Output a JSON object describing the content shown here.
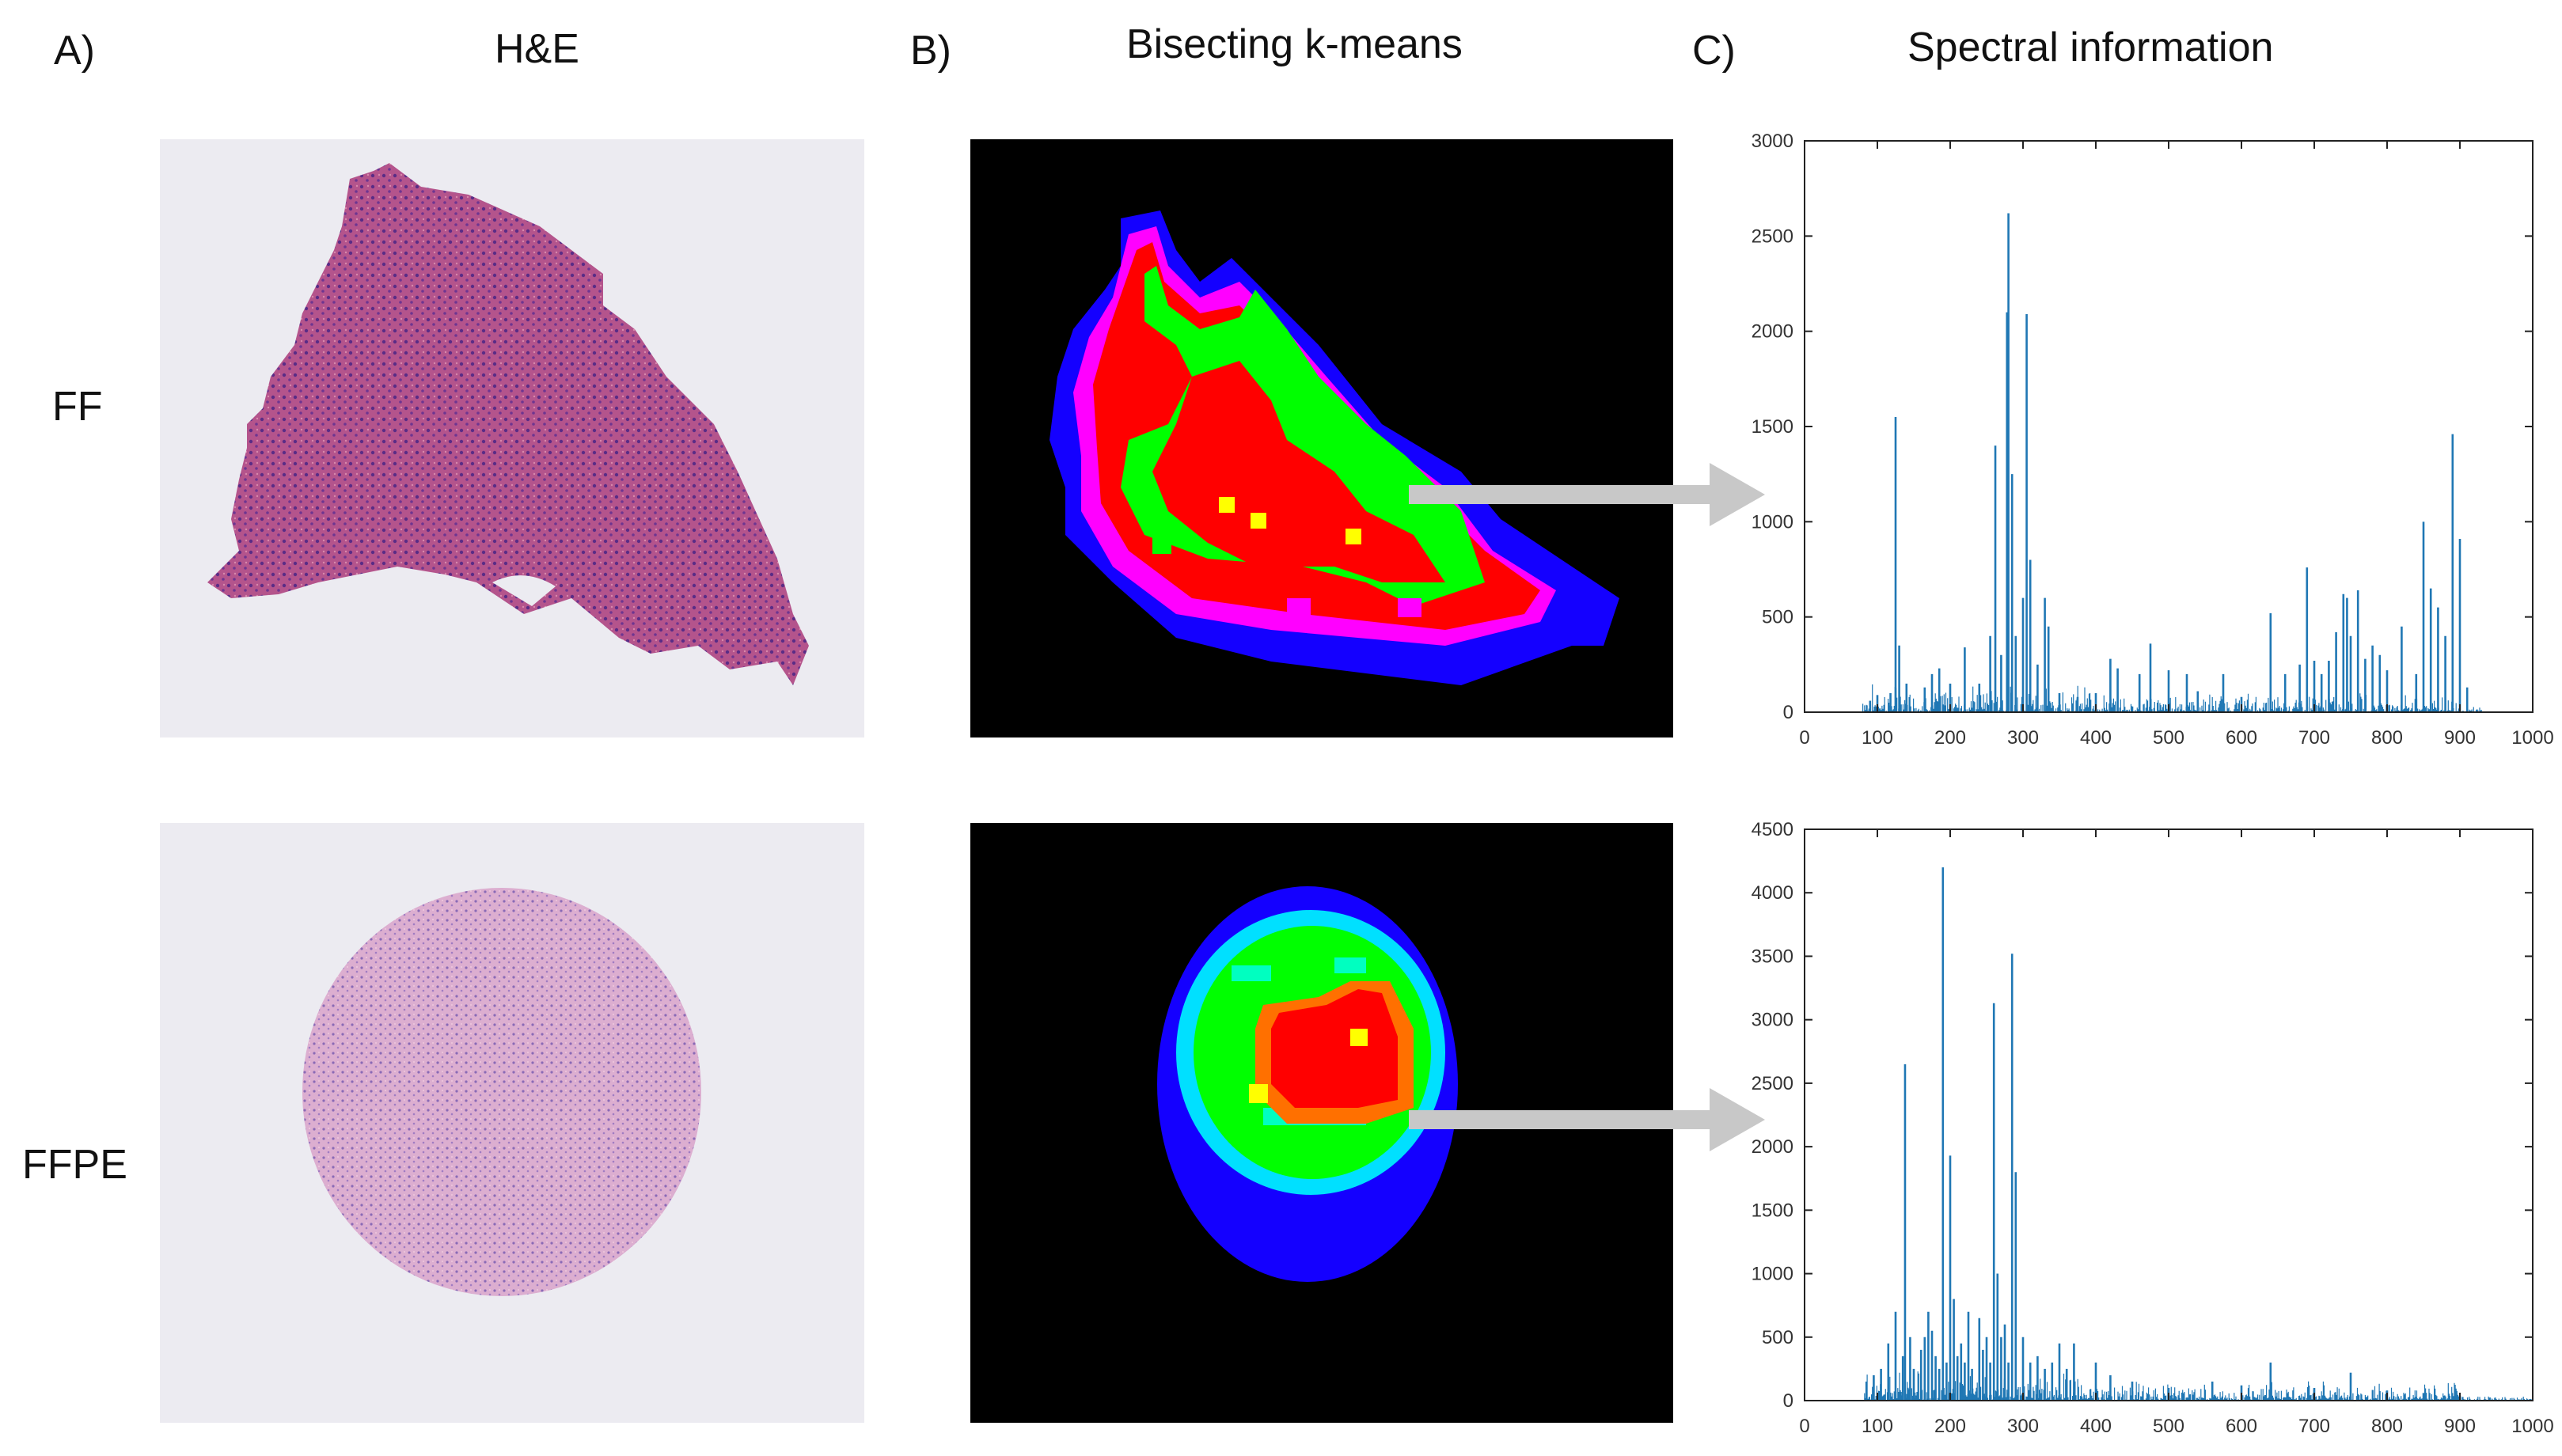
{
  "headers": {
    "a_letter": "A)",
    "a_title": "H&E",
    "b_letter": "B)",
    "b_title": "Bisecting k-means",
    "c_letter": "C)",
    "c_title": "Spectral information"
  },
  "rows": [
    {
      "label": "FF"
    },
    {
      "label": "FFPE"
    }
  ],
  "colors": {
    "background": "#ffffff",
    "he_tissue_ff": "#b4548c",
    "he_tissue_ffpe": "#d7a8c8",
    "kmeans_bg": "#000000",
    "cluster_blue": "#1400ff",
    "cluster_magenta": "#ff00ff",
    "cluster_red": "#ff0000",
    "cluster_green": "#00ff00",
    "cluster_cyan": "#00ffc0",
    "cluster_yellow": "#ffff00",
    "spectrum_line": "#1f77b4",
    "arrow": "#c8c8c8"
  },
  "chart_data": [
    {
      "type": "line",
      "title": "",
      "xlabel": "",
      "ylabel": "",
      "xlim": [
        0,
        1000
      ],
      "ylim": [
        0,
        3000
      ],
      "xticks": [
        "0",
        "100",
        "200",
        "300",
        "400",
        "500",
        "600",
        "700",
        "800",
        "900",
        "1000"
      ],
      "yticks": [
        "0",
        "500",
        "1000",
        "1500",
        "2000",
        "2500",
        "3000"
      ],
      "baseline_range": [
        80,
        930
      ],
      "peaks": {
        "x": [
          90,
          100,
          118,
          125,
          130,
          140,
          165,
          175,
          185,
          200,
          220,
          240,
          255,
          262,
          270,
          278,
          280,
          285,
          290,
          300,
          305,
          310,
          320,
          330,
          335,
          350,
          375,
          400,
          420,
          430,
          460,
          475,
          500,
          525,
          540,
          575,
          600,
          640,
          660,
          680,
          690,
          700,
          710,
          720,
          730,
          740,
          745,
          750,
          760,
          770,
          780,
          790,
          800,
          820,
          840,
          850,
          860,
          870,
          880,
          890,
          900,
          910
        ],
        "y": [
          60,
          90,
          100,
          1550,
          350,
          150,
          130,
          200,
          230,
          150,
          340,
          150,
          400,
          1400,
          300,
          2100,
          2620,
          1250,
          400,
          600,
          2090,
          800,
          250,
          600,
          450,
          100,
          80,
          100,
          280,
          230,
          200,
          360,
          220,
          200,
          110,
          200,
          80,
          520,
          200,
          250,
          760,
          270,
          200,
          270,
          420,
          620,
          600,
          400,
          640,
          280,
          350,
          300,
          220,
          450,
          200,
          1000,
          650,
          550,
          400,
          1460,
          910,
          130
        ]
      }
    },
    {
      "type": "line",
      "title": "",
      "xlabel": "",
      "ylabel": "",
      "xlim": [
        0,
        1000
      ],
      "ylim": [
        0,
        4500
      ],
      "xticks": [
        "0",
        "100",
        "200",
        "300",
        "400",
        "500",
        "600",
        "700",
        "800",
        "900",
        "1000"
      ],
      "yticks": [
        "0",
        "500",
        "1000",
        "1500",
        "2000",
        "2500",
        "3000",
        "3500",
        "4000",
        "4500"
      ],
      "baseline_range": [
        80,
        1000
      ],
      "peaks": {
        "x": [
          85,
          95,
          105,
          115,
          125,
          135,
          138,
          145,
          150,
          160,
          165,
          170,
          175,
          180,
          185,
          190,
          195,
          200,
          205,
          210,
          215,
          220,
          225,
          230,
          240,
          245,
          250,
          255,
          260,
          265,
          270,
          275,
          280,
          285,
          290,
          300,
          310,
          320,
          330,
          340,
          350,
          360,
          370,
          400,
          420,
          450,
          500,
          560,
          600,
          640,
          700,
          750,
          800,
          850,
          900
        ],
        "y": [
          150,
          200,
          250,
          450,
          700,
          350,
          2650,
          500,
          250,
          400,
          500,
          700,
          550,
          350,
          250,
          4200,
          300,
          1930,
          800,
          350,
          450,
          300,
          700,
          250,
          650,
          400,
          500,
          300,
          3130,
          1000,
          500,
          600,
          300,
          3520,
          1800,
          500,
          300,
          350,
          250,
          300,
          450,
          250,
          450,
          300,
          200,
          150,
          100,
          150,
          120,
          300,
          100,
          220,
          80,
          60,
          40
        ]
      }
    }
  ]
}
